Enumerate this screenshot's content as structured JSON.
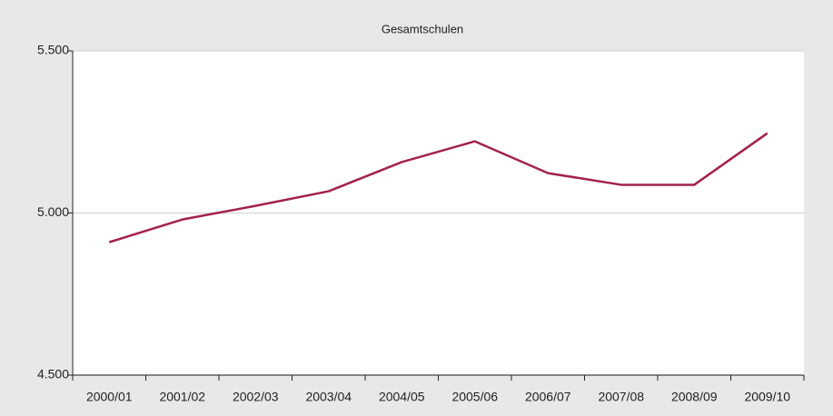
{
  "chart_data": {
    "type": "line",
    "title": "Gesamtschulen",
    "categories": [
      "2000/01",
      "2001/02",
      "2002/03",
      "2003/04",
      "2004/05",
      "2005/06",
      "2006/07",
      "2007/08",
      "2008/09",
      "2009/10"
    ],
    "series": [
      {
        "name": "Gesamtschulen",
        "color": "#a3214c",
        "values": [
          4910,
          4980,
          5022,
          5067,
          5157,
          5221,
          5123,
          5087,
          5087,
          5246
        ]
      }
    ],
    "ylim": [
      4500,
      5500
    ],
    "yticks": [
      {
        "value": 4500,
        "label": "4.500"
      },
      {
        "value": 5000,
        "label": "5.000"
      },
      {
        "value": 5500,
        "label": "5.500"
      }
    ],
    "grid": true
  }
}
